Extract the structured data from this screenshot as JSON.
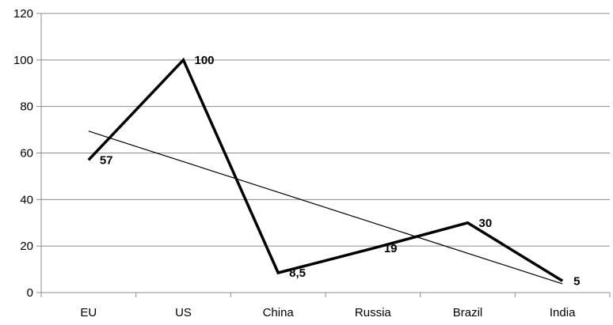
{
  "chart_data": {
    "type": "line",
    "categories": [
      "EU",
      "US",
      "China",
      "Russia",
      "Brazil",
      "India"
    ],
    "series": [
      {
        "values": [
          57,
          100,
          8.5,
          19,
          30,
          5
        ],
        "data_labels": [
          "57",
          "100",
          "8,5",
          "19",
          "30",
          "5"
        ],
        "color": "#000000"
      }
    ],
    "trendline": {
      "type": "linear",
      "color": "#000000"
    },
    "y_ticks": [
      "0",
      "20",
      "40",
      "60",
      "80",
      "100",
      "120"
    ],
    "ylim": [
      0,
      120
    ],
    "grid": "horizontal",
    "legend": "none"
  }
}
